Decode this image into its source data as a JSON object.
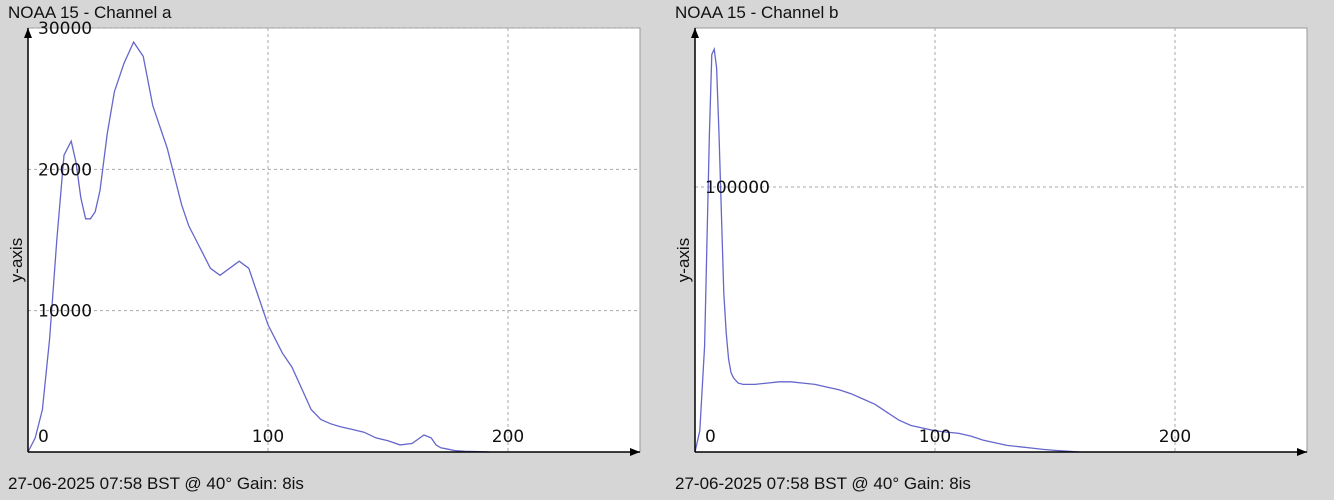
{
  "colors": {
    "background": "#d6d6d6",
    "plot_bg": "#ffffff",
    "line": "#6666cc",
    "grid": "#aaaaaa",
    "axis": "#000000"
  },
  "panels": [
    {
      "title": "NOAA 15 - Channel a",
      "footer": "27-06-2025 07:58 BST @ 40° Gain: 8is"
    },
    {
      "title": "NOAA 15 - Channel b",
      "footer": "27-06-2025 07:58 BST @ 40° Gain: 8is"
    }
  ],
  "chart_data": [
    {
      "type": "line",
      "title": "NOAA 15 - Channel a",
      "ylabel": "y-axis",
      "xlabel": "",
      "xlim": [
        0,
        255
      ],
      "ylim": [
        0,
        30000
      ],
      "xticks": [
        0,
        100,
        200
      ],
      "yticks": [
        10000,
        20000,
        30000
      ],
      "grid": true,
      "series": [
        {
          "x": [
            0,
            3,
            6,
            9,
            12,
            15,
            18,
            20,
            22,
            24,
            26,
            28,
            30,
            33,
            36,
            40,
            44,
            48,
            52,
            55,
            58,
            61,
            64,
            67,
            70,
            73,
            76,
            80,
            84,
            88,
            92,
            95,
            98,
            100,
            103,
            106,
            110,
            114,
            118,
            122,
            126,
            130,
            135,
            140,
            145,
            150,
            155,
            160,
            165,
            168,
            170,
            172,
            175,
            178,
            182,
            188,
            192
          ],
          "y": [
            0,
            1000,
            3000,
            8000,
            15000,
            21000,
            22000,
            20500,
            18000,
            16500,
            16500,
            17000,
            18500,
            22500,
            25500,
            27500,
            29000,
            28000,
            24500,
            23000,
            21500,
            19500,
            17500,
            16000,
            15000,
            14000,
            13000,
            12500,
            13000,
            13500,
            13000,
            11500,
            10000,
            9000,
            8000,
            7000,
            6000,
            4500,
            3000,
            2300,
            2000,
            1800,
            1600,
            1400,
            1000,
            800,
            500,
            600,
            1200,
            1000,
            500,
            300,
            200,
            100,
            50,
            30,
            0
          ]
        }
      ]
    },
    {
      "type": "line",
      "title": "NOAA 15 - Channel b",
      "ylabel": "y-axis",
      "xlabel": "",
      "xlim": [
        0,
        255
      ],
      "ylim": [
        0,
        160000
      ],
      "xticks": [
        0,
        100,
        200
      ],
      "yticks": [
        100000
      ],
      "grid": true,
      "series": [
        {
          "x": [
            0,
            2,
            4,
            5,
            6,
            7,
            8,
            9,
            10,
            11,
            12,
            13,
            14,
            15,
            16,
            17,
            18,
            20,
            22,
            25,
            30,
            35,
            40,
            45,
            50,
            55,
            60,
            65,
            70,
            75,
            80,
            85,
            90,
            95,
            100,
            105,
            110,
            115,
            120,
            125,
            130,
            135,
            140,
            145,
            150,
            155,
            160
          ],
          "y": [
            0,
            8000,
            40000,
            80000,
            120000,
            150000,
            152000,
            145000,
            120000,
            90000,
            60000,
            45000,
            35000,
            30000,
            28000,
            27000,
            26000,
            25500,
            25500,
            25500,
            26000,
            26500,
            26500,
            26000,
            25500,
            24500,
            23500,
            22000,
            20000,
            18000,
            15000,
            12000,
            10000,
            9000,
            8000,
            7500,
            7000,
            6000,
            4500,
            3500,
            2500,
            2000,
            1500,
            1000,
            600,
            300,
            0
          ]
        }
      ]
    }
  ]
}
